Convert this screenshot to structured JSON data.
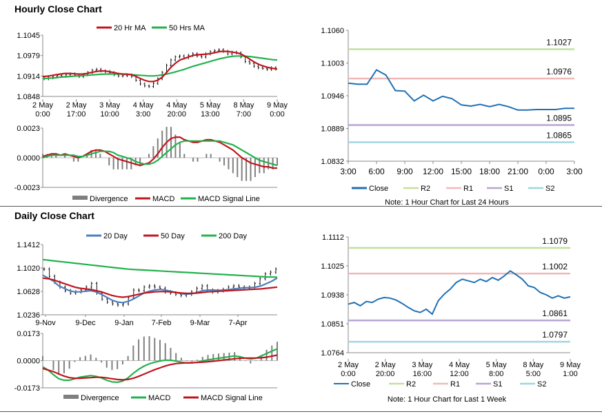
{
  "sections": [
    {
      "title": "Hourly Close Chart"
    },
    {
      "title": "Daily Close Chart"
    }
  ],
  "colors": {
    "red": "#c0141c",
    "green": "#22b14c",
    "blue": "#4a7ebb",
    "close": "#1f6fb2",
    "R2": "#c3e09b",
    "R1": "#f2b8b8",
    "S1": "#b9a4d2",
    "S2": "#9fd6e0",
    "divergence": "#7f7f7f"
  },
  "chart_data": [
    {
      "id": "hourly-price",
      "type": "ohlc",
      "legend": [
        "20 Hr MA",
        "50 Hrs MA"
      ],
      "yticks": [
        "1.1045",
        "1.0979",
        "1.0914",
        "1.0848"
      ],
      "ylim": [
        1.0848,
        1.1045
      ],
      "xticks": [
        [
          "2 May",
          "0:00"
        ],
        [
          "2 May",
          "17:00"
        ],
        [
          "3 May",
          "10:00"
        ],
        [
          "4 May",
          "3:00"
        ],
        [
          "4 May",
          "20:00"
        ],
        [
          "5 May",
          "13:00"
        ],
        [
          "8 May",
          "7:00"
        ],
        [
          "9 May",
          "0:00"
        ]
      ],
      "close": [
        1.0905,
        1.0908,
        1.0912,
        1.0915,
        1.0913,
        1.0918,
        1.092,
        1.0916,
        1.0912,
        1.0918,
        1.0925,
        1.0932,
        1.0935,
        1.093,
        1.0928,
        1.0924,
        1.0918,
        1.0914,
        1.0915,
        1.0917,
        1.0912,
        1.09,
        1.0888,
        1.0882,
        1.088,
        1.089,
        1.0905,
        1.0925,
        1.0948,
        1.0965,
        1.0975,
        1.0978,
        1.0972,
        1.098,
        1.0985,
        1.0978,
        1.0975,
        1.0985,
        1.0992,
        1.0995,
        1.0998,
        1.0993,
        1.0985,
        1.099,
        1.0988,
        1.0975,
        1.096,
        1.0955,
        1.0945,
        1.094,
        1.0938,
        1.0935,
        1.094,
        1.0936
      ],
      "ma20": [
        1.0912,
        1.0913,
        1.0915,
        1.0918,
        1.092,
        1.0922,
        1.0922,
        1.0921,
        1.092,
        1.092,
        1.0922,
        1.0925,
        1.0928,
        1.093,
        1.093,
        1.0928,
        1.0925,
        1.0922,
        1.092,
        1.092,
        1.0918,
        1.0913,
        1.0906,
        1.09,
        1.0896,
        1.0896,
        1.09,
        1.091,
        1.0925,
        1.0942,
        1.0955,
        1.0965,
        1.097,
        1.0975,
        1.098,
        1.0982,
        1.0983,
        1.0984,
        1.0986,
        1.0989,
        1.0992,
        1.0993,
        1.0992,
        1.099,
        1.0988,
        1.0983,
        1.0975,
        1.0966,
        1.0957,
        1.095,
        1.0945,
        1.0941,
        1.0938,
        1.0936
      ],
      "ma50": [
        1.0905,
        1.0906,
        1.0907,
        1.0908,
        1.091,
        1.0911,
        1.0912,
        1.0913,
        1.0914,
        1.0915,
        1.0916,
        1.0917,
        1.0918,
        1.0919,
        1.092,
        1.092,
        1.092,
        1.092,
        1.092,
        1.0919,
        1.0918,
        1.0917,
        1.0916,
        1.0915,
        1.0914,
        1.0914,
        1.0915,
        1.0917,
        1.092,
        1.0923,
        1.0927,
        1.0931,
        1.0935,
        1.094,
        1.0945,
        1.0949,
        1.0953,
        1.0957,
        1.0961,
        1.0965,
        1.0969,
        1.0972,
        1.0975,
        1.0977,
        1.0978,
        1.0978,
        1.0977,
        1.0976,
        1.0974,
        1.0972,
        1.097,
        1.0968,
        1.0966,
        1.0965
      ]
    },
    {
      "id": "hourly-macd",
      "type": "macd",
      "legend": [
        "Divergence",
        "MACD",
        "MACD Signal Line"
      ],
      "yticks": [
        "0.0023",
        "0.0000",
        "-0.0023"
      ],
      "ylim": [
        -0.0023,
        0.0023
      ],
      "macd": [
        0.0001,
        0.0002,
        0.0003,
        0.0003,
        0.0002,
        0.0003,
        0.0002,
        0.0001,
        0.0,
        0.0001,
        0.0003,
        0.0005,
        0.0006,
        0.0006,
        0.0005,
        0.0003,
        0.0001,
        -0.0001,
        -0.0002,
        -0.0003,
        -0.0004,
        -0.0005,
        -0.0006,
        -0.0005,
        -0.0004,
        -0.0001,
        0.0003,
        0.0008,
        0.0012,
        0.0015,
        0.0016,
        0.0016,
        0.0014,
        0.0013,
        0.0012,
        0.0012,
        0.0013,
        0.0014,
        0.0014,
        0.0013,
        0.0012,
        0.001,
        0.0008,
        0.0006,
        0.0003,
        0.0,
        -0.0002,
        -0.0004,
        -0.0005,
        -0.0006,
        -0.0007,
        -0.0007,
        -0.0008,
        -0.0008
      ],
      "signal": [
        0.0,
        0.0001,
        0.0002,
        0.0002,
        0.0002,
        0.0002,
        0.0002,
        0.0002,
        0.0001,
        0.0001,
        0.0002,
        0.0003,
        0.0004,
        0.0005,
        0.0005,
        0.0005,
        0.0004,
        0.0002,
        0.0001,
        0.0,
        -0.0001,
        -0.0003,
        -0.0004,
        -0.0005,
        -0.0005,
        -0.0004,
        -0.0002,
        0.0001,
        0.0004,
        0.0007,
        0.001,
        0.0012,
        0.0013,
        0.0013,
        0.0013,
        0.0013,
        0.0013,
        0.0013,
        0.0013,
        0.0013,
        0.0013,
        0.0012,
        0.0011,
        0.001,
        0.0008,
        0.0006,
        0.0004,
        0.0002,
        0.0,
        -0.0002,
        -0.0003,
        -0.0004,
        -0.0005,
        -0.0006
      ]
    },
    {
      "id": "hourly-levels",
      "type": "line",
      "yticks": [
        "1.1060",
        "1.1003",
        "1.0946",
        "1.0889",
        "1.0832"
      ],
      "ylim": [
        1.0832,
        1.106
      ],
      "xticks": [
        "3:00",
        "6:00",
        "9:00",
        "12:00",
        "15:00",
        "18:00",
        "21:00",
        "0:00",
        "3:00"
      ],
      "close": [
        1.0968,
        1.0966,
        1.0966,
        1.0991,
        1.0982,
        1.0955,
        1.0954,
        1.0937,
        1.0947,
        1.0937,
        1.0945,
        1.0941,
        1.093,
        1.0928,
        1.0931,
        1.0927,
        1.0931,
        1.0927,
        1.0921,
        1.0921,
        1.0922,
        1.0922,
        1.0922,
        1.0924,
        1.0924
      ],
      "levels": {
        "R2": 1.1027,
        "R1": 1.0976,
        "S1": 1.0895,
        "S2": 1.0865
      },
      "level_labels": {
        "R2": "1.1027",
        "R1": "1.0976",
        "S1": "1.0895",
        "S2": "1.0865"
      },
      "legend": [
        "Close",
        "R2",
        "R1",
        "S1",
        "S2"
      ],
      "note": "Note: 1 Hour Chart for Last 24 Hours"
    },
    {
      "id": "daily-price",
      "type": "ohlc",
      "legend": [
        "20 Day",
        "50 Day",
        "200 Day"
      ],
      "yticks": [
        "1.1412",
        "1.1020",
        "1.0628",
        "1.0236"
      ],
      "ylim": [
        1.0236,
        1.1412
      ],
      "xticks": [
        "9-Nov",
        "9-Dec",
        "9-Jan",
        "7-Feb",
        "9-Mar",
        "7-Apr"
      ],
      "close": [
        1.1,
        1.088,
        1.078,
        1.07,
        1.064,
        1.06,
        1.062,
        1.065,
        1.07,
        1.076,
        1.06,
        1.05,
        1.045,
        1.042,
        1.04,
        1.042,
        1.052,
        1.065,
        1.064,
        1.07,
        1.072,
        1.07,
        1.068,
        1.062,
        1.06,
        1.058,
        1.056,
        1.058,
        1.062,
        1.068,
        1.072,
        1.065,
        1.062,
        1.064,
        1.066,
        1.07,
        1.072,
        1.07,
        1.068,
        1.07,
        1.076,
        1.084,
        1.092,
        1.095,
        1.1
      ],
      "ma20": [
        1.09,
        1.085,
        1.08,
        1.072,
        1.068,
        1.064,
        1.062,
        1.062,
        1.063,
        1.064,
        1.062,
        1.058,
        1.053,
        1.048,
        1.045,
        1.044,
        1.046,
        1.05,
        1.055,
        1.06,
        1.063,
        1.065,
        1.066,
        1.065,
        1.063,
        1.061,
        1.059,
        1.058,
        1.059,
        1.061,
        1.064,
        1.065,
        1.065,
        1.0645,
        1.065,
        1.066,
        1.067,
        1.068,
        1.069,
        1.069,
        1.07,
        1.072,
        1.076,
        1.08,
        1.085
      ],
      "ma50": [
        1.085,
        1.084,
        1.082,
        1.079,
        1.076,
        1.073,
        1.07,
        1.068,
        1.067,
        1.066,
        1.064,
        1.062,
        1.059,
        1.056,
        1.054,
        1.053,
        1.054,
        1.056,
        1.058,
        1.06,
        1.061,
        1.062,
        1.0625,
        1.0625,
        1.062,
        1.061,
        1.06,
        1.0595,
        1.0595,
        1.06,
        1.061,
        1.062,
        1.0625,
        1.063,
        1.0635,
        1.064,
        1.0645,
        1.065,
        1.0655,
        1.066,
        1.0665,
        1.067,
        1.068,
        1.069,
        1.07
      ],
      "ma200": [
        1.116,
        1.115,
        1.114,
        1.113,
        1.112,
        1.111,
        1.11,
        1.109,
        1.108,
        1.107,
        1.106,
        1.105,
        1.104,
        1.103,
        1.102,
        1.101,
        1.1,
        1.0995,
        1.099,
        1.0985,
        1.098,
        1.0975,
        1.097,
        1.0965,
        1.096,
        1.0955,
        1.095,
        1.0945,
        1.094,
        1.0935,
        1.093,
        1.0925,
        1.092,
        1.0915,
        1.091,
        1.0905,
        1.09,
        1.0895,
        1.089,
        1.0885,
        1.088,
        1.0875,
        1.087,
        1.0868,
        1.0865
      ]
    },
    {
      "id": "daily-macd",
      "type": "macd",
      "legend": [
        "Divergence",
        "MACD",
        "MACD Signal Line"
      ],
      "yticks": [
        "0.0173",
        "0.0000",
        "-0.0173"
      ],
      "ylim": [
        -0.0173,
        0.0173
      ],
      "macd": [
        -0.004,
        -0.006,
        -0.009,
        -0.0115,
        -0.0125,
        -0.0125,
        -0.0115,
        -0.0105,
        -0.01,
        -0.0095,
        -0.01,
        -0.011,
        -0.0125,
        -0.0135,
        -0.0138,
        -0.013,
        -0.011,
        -0.008,
        -0.0055,
        -0.0035,
        -0.002,
        -0.001,
        -0.0002,
        0.0003,
        0.0002,
        -0.0003,
        -0.001,
        -0.0015,
        -0.0015,
        -0.001,
        -0.0002,
        0.0005,
        0.001,
        0.0015,
        0.002,
        0.0025,
        0.003,
        0.0025,
        0.0015,
        0.001,
        0.0015,
        0.003,
        0.0045,
        0.006,
        0.0075
      ],
      "signal": [
        -0.005,
        -0.006,
        -0.007,
        -0.0085,
        -0.0098,
        -0.0108,
        -0.0112,
        -0.0112,
        -0.011,
        -0.0108,
        -0.0106,
        -0.0106,
        -0.011,
        -0.0115,
        -0.012,
        -0.0122,
        -0.012,
        -0.0112,
        -0.01,
        -0.0086,
        -0.0072,
        -0.0058,
        -0.0046,
        -0.0034,
        -0.0025,
        -0.0019,
        -0.0016,
        -0.0014,
        -0.0013,
        -0.0012,
        -0.001,
        -0.0007,
        -0.0004,
        0.0,
        0.0004,
        0.0008,
        0.0012,
        0.0015,
        0.0016,
        0.0016,
        0.0016,
        0.0018,
        0.0022,
        0.0028,
        0.0035
      ]
    },
    {
      "id": "daily-levels",
      "type": "line",
      "yticks": [
        "1.1112",
        "1.1025",
        "1.0938",
        "1.0851",
        "1.0764"
      ],
      "ylim": [
        1.0764,
        1.1112
      ],
      "xticks": [
        [
          "2 May",
          "0:00"
        ],
        [
          "2 May",
          "20:00"
        ],
        [
          "3 May",
          "16:00"
        ],
        [
          "4 May",
          "12:00"
        ],
        [
          "5 May",
          "8:00"
        ],
        [
          "8 May",
          "5:00"
        ],
        [
          "9 May",
          "1:00"
        ]
      ],
      "close": [
        1.091,
        1.0915,
        1.0905,
        1.0918,
        1.0915,
        1.0925,
        1.093,
        1.0928,
        1.0922,
        1.0912,
        1.09,
        1.089,
        1.0885,
        1.0895,
        1.088,
        1.092,
        1.094,
        1.0955,
        1.0975,
        1.0985,
        1.098,
        1.0975,
        1.0985,
        1.0978,
        1.099,
        1.0982,
        1.0995,
        1.101,
        1.0998,
        1.0985,
        1.0965,
        1.096,
        1.0945,
        1.0938,
        1.0928,
        1.0935,
        1.0928,
        1.0932
      ],
      "levels": {
        "R2": 1.1079,
        "R1": 1.1002,
        "S1": 1.0861,
        "S2": 1.0797
      },
      "level_labels": {
        "R2": "1.1079",
        "R1": "1.1002",
        "S1": "1.0861",
        "S2": "1.0797"
      },
      "legend": [
        "Close",
        "R2",
        "R1",
        "S1",
        "S2"
      ],
      "note": "Note: 1 Hour Chart for Last 1 Week"
    }
  ]
}
